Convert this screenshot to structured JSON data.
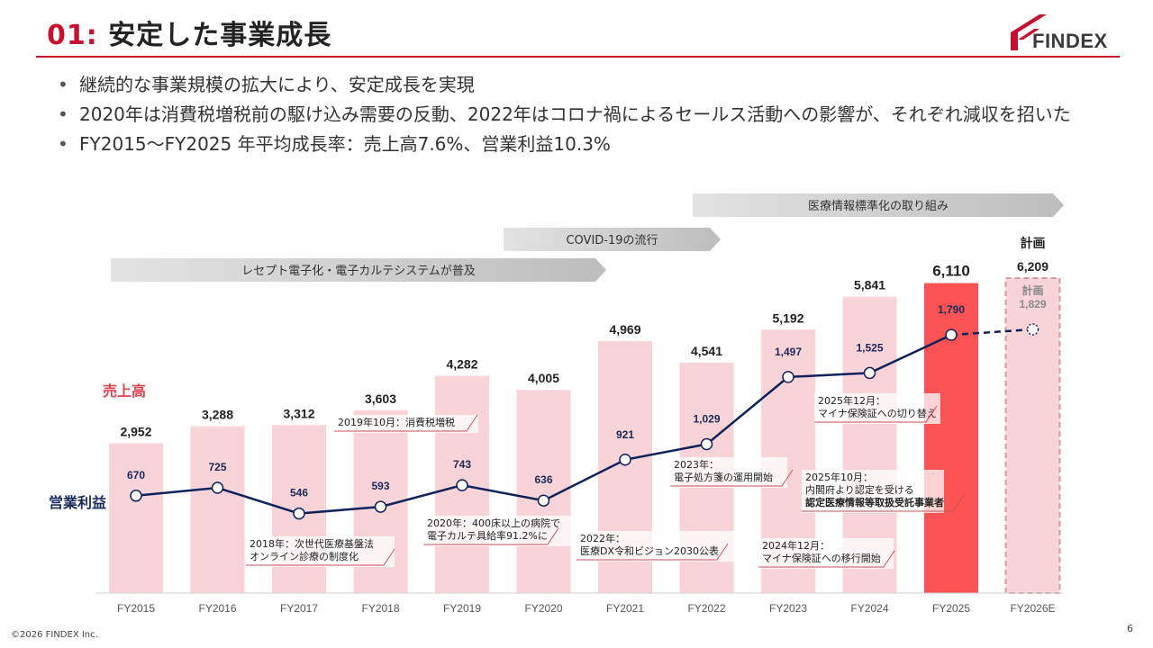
{
  "slide": {
    "number": "01:",
    "title": "安定した事業成長",
    "page": "6",
    "copyright": "©2026 FINDEX Inc."
  },
  "logo": {
    "text": "FINDEX",
    "color": "#c8102e"
  },
  "bullets": [
    "継続的な事業規模の拡大により、安定成長を実現",
    "2020年は消費税増税前の駆け込み需要の反動、2022年はコロナ禍によるセールス活動への影響が、それぞれ減収を招いた",
    "FY2015～FY2025 年平均成長率：売上高7.6%、営業利益10.3%"
  ],
  "chart_data": {
    "type": "bar",
    "categories": [
      "FY2015",
      "FY2016",
      "FY2017",
      "FY2018",
      "FY2019",
      "FY2020",
      "FY2021",
      "FY2022",
      "FY2023",
      "FY2024",
      "FY2025",
      "FY2026E"
    ],
    "series": [
      {
        "name": "売上高",
        "kind": "bar",
        "values": [
          2952,
          3288,
          3312,
          3603,
          4282,
          4005,
          4969,
          4541,
          5192,
          5841,
          6110,
          6209
        ],
        "labels": [
          "2,952",
          "3,288",
          "3,312",
          "3,603",
          "4,282",
          "4,005",
          "4,969",
          "4,541",
          "5,192",
          "5,841",
          "6,110",
          "6,209"
        ]
      },
      {
        "name": "営業利益",
        "kind": "line",
        "values": [
          670,
          725,
          546,
          593,
          743,
          636,
          921,
          1029,
          1497,
          1525,
          1790,
          1829
        ],
        "labels": [
          "670",
          "725",
          "546",
          "593",
          "743",
          "636",
          "921",
          "1,029",
          "1,497",
          "1,525",
          "1,790",
          "1,829"
        ]
      }
    ],
    "highlight_category": "FY2025",
    "plan_category": "FY2026E",
    "plan_label": "計画",
    "plan_inner_label": "計画",
    "colors": {
      "bar": "#f8d3d8",
      "bar_highlight": "#fb5254",
      "line": "#10225c",
      "plan_text": "#8a8a8a",
      "sales_label": "#e0434d",
      "op_label": "#1a2a5a"
    },
    "arrows": [
      {
        "text": "レセプト電子化・電子カルテシステムが普及",
        "from": "FY2015",
        "to": "FY2020"
      },
      {
        "text": "COVID-19の流行",
        "from": "FY2020",
        "to": "FY2022"
      },
      {
        "text": "医療情報標準化の取り組み",
        "from": "FY2022",
        "to": "FY2026E"
      }
    ],
    "annotations": [
      {
        "lines": [
          "2019年10月：消費税増税"
        ],
        "bold": [
          false
        ]
      },
      {
        "lines": [
          "2018年：次世代医療基盤法",
          "オンライン診療の制度化"
        ],
        "bold": [
          false,
          false
        ]
      },
      {
        "lines": [
          "2020年：400床以上の病院で",
          "電子カルテ具給率91.2%に"
        ],
        "bold": [
          false,
          false
        ]
      },
      {
        "lines": [
          "2022年：",
          "医療DX令和ビジョン2030公表"
        ],
        "bold": [
          false,
          false
        ]
      },
      {
        "lines": [
          "2023年：",
          "電子処方箋の運用開始"
        ],
        "bold": [
          false,
          false
        ]
      },
      {
        "lines": [
          "2025年12月：",
          "マイナ保険証への切り替え"
        ],
        "bold": [
          false,
          false
        ]
      },
      {
        "lines": [
          "2025年10月：",
          "内閣府より認定を受ける",
          "認定医療情報等取扱受託事業者"
        ],
        "bold": [
          false,
          false,
          true
        ]
      },
      {
        "lines": [
          "2024年12月：",
          "マイナ保険証への移行開始"
        ],
        "bold": [
          false,
          false
        ]
      }
    ]
  }
}
